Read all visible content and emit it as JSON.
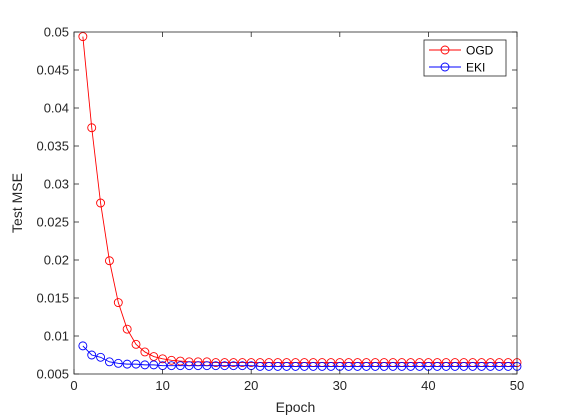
{
  "chart_data": {
    "type": "line",
    "xlabel": "Epoch",
    "ylabel": "Test MSE",
    "xlim": [
      0,
      50
    ],
    "ylim": [
      0.005,
      0.05
    ],
    "xticks": [
      "0",
      "10",
      "20",
      "30",
      "40",
      "50"
    ],
    "yticks": [
      "0.005",
      "0.01",
      "0.015",
      "0.02",
      "0.025",
      "0.03",
      "0.035",
      "0.04",
      "0.045",
      "0.05"
    ],
    "grid": false,
    "legend_position": "top-right",
    "x": [
      1,
      2,
      3,
      4,
      5,
      6,
      7,
      8,
      9,
      10,
      11,
      12,
      13,
      14,
      15,
      16,
      17,
      18,
      19,
      20,
      21,
      22,
      23,
      24,
      25,
      26,
      27,
      28,
      29,
      30,
      31,
      32,
      33,
      34,
      35,
      36,
      37,
      38,
      39,
      40,
      41,
      42,
      43,
      44,
      45,
      46,
      47,
      48,
      49,
      50
    ],
    "series": [
      {
        "name": "OGD",
        "color": "#ff0000",
        "marker": "circle",
        "values": [
          0.0494,
          0.0374,
          0.0275,
          0.0199,
          0.0144,
          0.0109,
          0.0089,
          0.0079,
          0.0073,
          0.007,
          0.0068,
          0.0067,
          0.0066,
          0.0066,
          0.0066,
          0.0065,
          0.0065,
          0.0065,
          0.0065,
          0.0065,
          0.0065,
          0.0065,
          0.0065,
          0.0065,
          0.0065,
          0.0065,
          0.0065,
          0.0065,
          0.0065,
          0.0065,
          0.0065,
          0.0065,
          0.0065,
          0.0065,
          0.0065,
          0.0065,
          0.0065,
          0.0065,
          0.0065,
          0.0065,
          0.0065,
          0.0065,
          0.0065,
          0.0065,
          0.0065,
          0.0065,
          0.0065,
          0.0065,
          0.0065,
          0.0065
        ]
      },
      {
        "name": "EKI",
        "color": "#0000ff",
        "marker": "circle",
        "values": [
          0.0087,
          0.0075,
          0.0072,
          0.0066,
          0.0064,
          0.0063,
          0.0063,
          0.0062,
          0.0062,
          0.0061,
          0.0061,
          0.0061,
          0.0061,
          0.0061,
          0.0061,
          0.0061,
          0.0061,
          0.0061,
          0.0061,
          0.0061,
          0.006,
          0.006,
          0.006,
          0.006,
          0.006,
          0.006,
          0.006,
          0.006,
          0.006,
          0.006,
          0.006,
          0.006,
          0.006,
          0.006,
          0.006,
          0.006,
          0.006,
          0.006,
          0.006,
          0.006,
          0.006,
          0.006,
          0.006,
          0.006,
          0.006,
          0.006,
          0.006,
          0.006,
          0.006,
          0.006
        ]
      }
    ]
  }
}
